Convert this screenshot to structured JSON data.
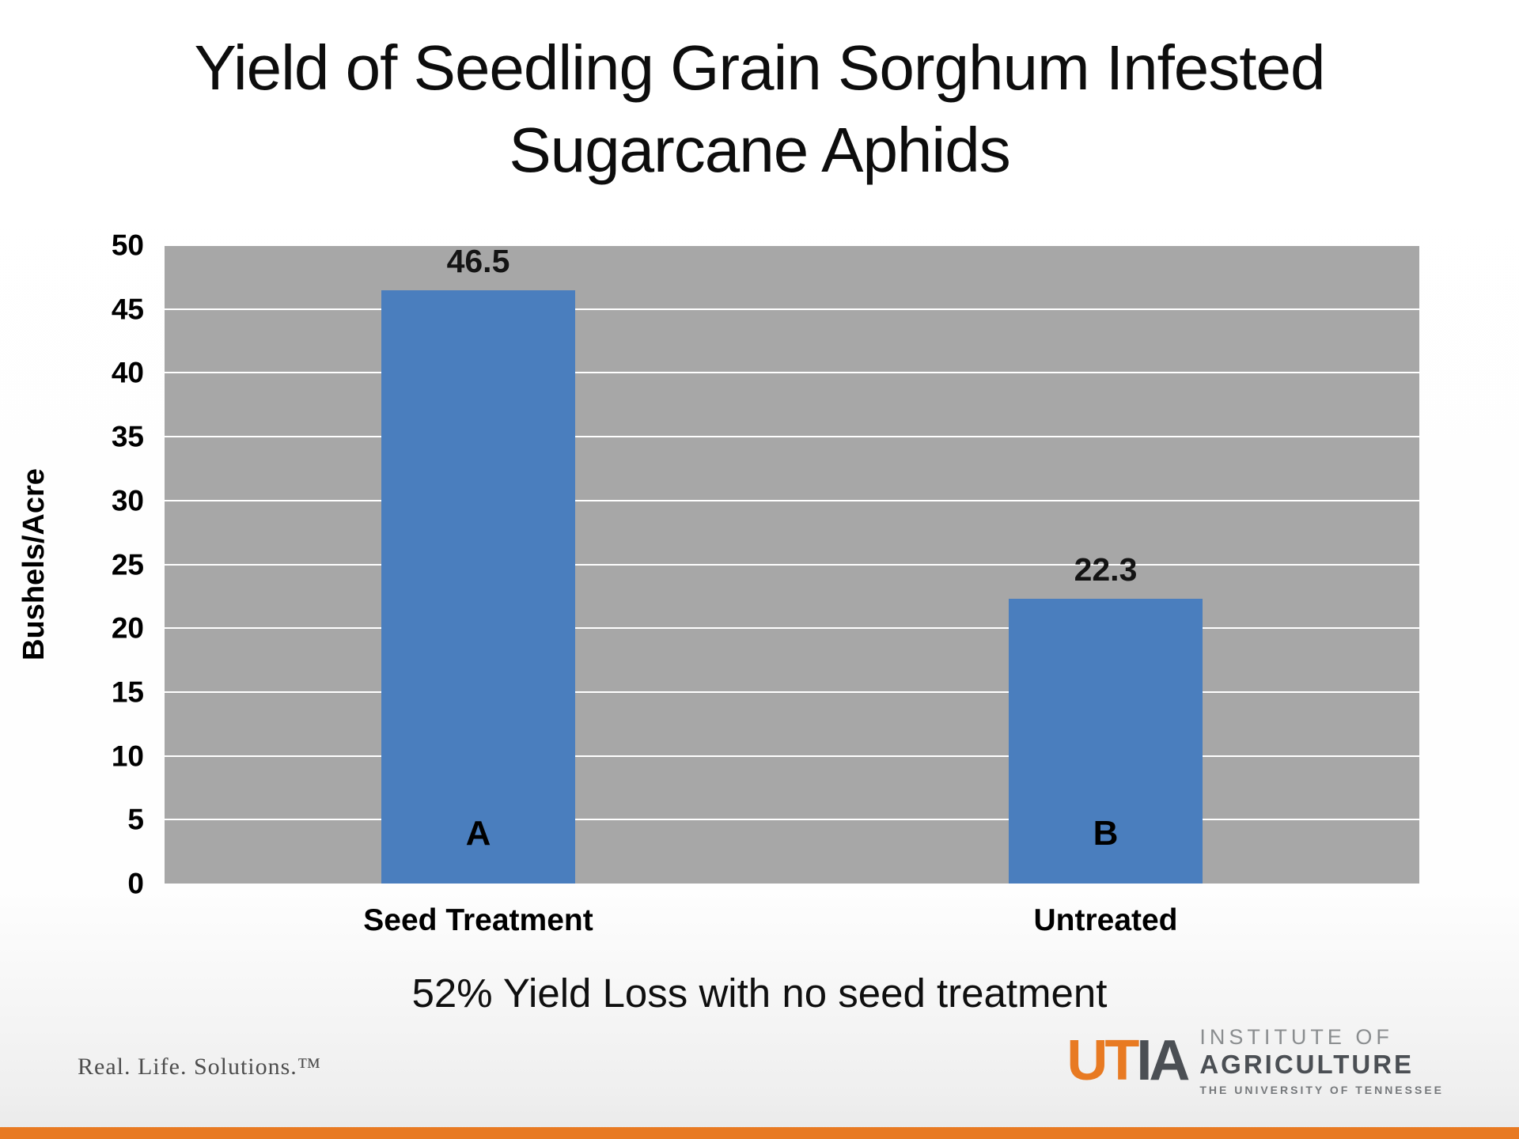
{
  "title_lines": [
    "Yield of Seedling Grain Sorghum Infested",
    "Sugarcane Aphids"
  ],
  "caption": "52% Yield Loss with no seed treatment",
  "footer": {
    "tagline": "Real. Life. Solutions.™",
    "logo": {
      "mark_ut": "UT",
      "mark_ia": "IA",
      "line1": "INSTITUTE OF",
      "line2": "AGRICULTURE",
      "line3": "THE UNIVERSITY OF TENNESSEE"
    }
  },
  "chart_data": {
    "type": "bar",
    "title": "Yield of Seedling Grain Sorghum Infested Sugarcane Aphids",
    "categories": [
      "Seed Treatment",
      "Untreated"
    ],
    "values": [
      46.5,
      22.3
    ],
    "bar_letters": [
      "A",
      "B"
    ],
    "xlabel": "",
    "ylabel": "Bushels/Acre",
    "ylim": [
      0,
      50
    ],
    "ytick_step": 5,
    "grid": true,
    "legend": false,
    "bar_color": "#4A7EBE",
    "plot_background": "#A7A7A7",
    "gridline_color": "#FFFFFF",
    "accent_color": "#E87A22"
  }
}
